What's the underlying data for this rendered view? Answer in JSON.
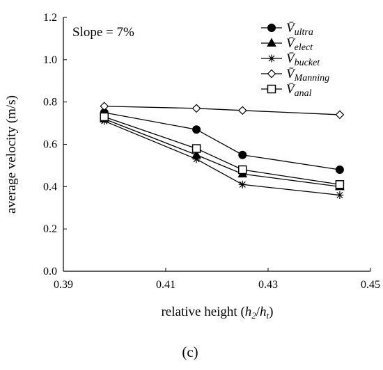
{
  "chart_data": {
    "type": "line",
    "annotation": "Slope = 7%",
    "xlabel": {
      "prefix": "relative height (",
      "h": "h",
      "sub2": "2",
      "slash": "/",
      "ht": "h",
      "subt": "t",
      "suffix": ")"
    },
    "ylabel": "average velocity (m/s)",
    "xlim": [
      0.39,
      0.45
    ],
    "ylim": [
      0.0,
      1.2
    ],
    "x_ticks": [
      "0.39",
      "0.41",
      "0.43",
      "0.45"
    ],
    "y_ticks": [
      "0.0",
      "0.2",
      "0.4",
      "0.6",
      "0.8",
      "1.0",
      "1.2"
    ],
    "grid": false,
    "legend_position": "top-right",
    "x": [
      0.398,
      0.416,
      0.425,
      0.444
    ],
    "series": [
      {
        "name": "V̄ultra",
        "base": "V̄",
        "sub": "ultra",
        "marker": "circle-filled",
        "values": [
          0.75,
          0.67,
          0.55,
          0.48
        ]
      },
      {
        "name": "V̄elect",
        "base": "V̄",
        "sub": "elect",
        "marker": "triangle-filled",
        "values": [
          0.72,
          0.55,
          0.46,
          0.4
        ]
      },
      {
        "name": "V̄bucket",
        "base": "V̄",
        "sub": "bucket",
        "marker": "asterisk",
        "values": [
          0.71,
          0.53,
          0.41,
          0.36
        ]
      },
      {
        "name": "V̄Manning",
        "base": "V̄",
        "sub": "Manning",
        "marker": "diamond-open",
        "values": [
          0.78,
          0.77,
          0.76,
          0.74
        ]
      },
      {
        "name": "V̄anal",
        "base": "V̄",
        "sub": "anal",
        "marker": "square-open",
        "values": [
          0.73,
          0.58,
          0.48,
          0.41
        ]
      }
    ],
    "line_color": "#000000",
    "caption": "(c)"
  }
}
